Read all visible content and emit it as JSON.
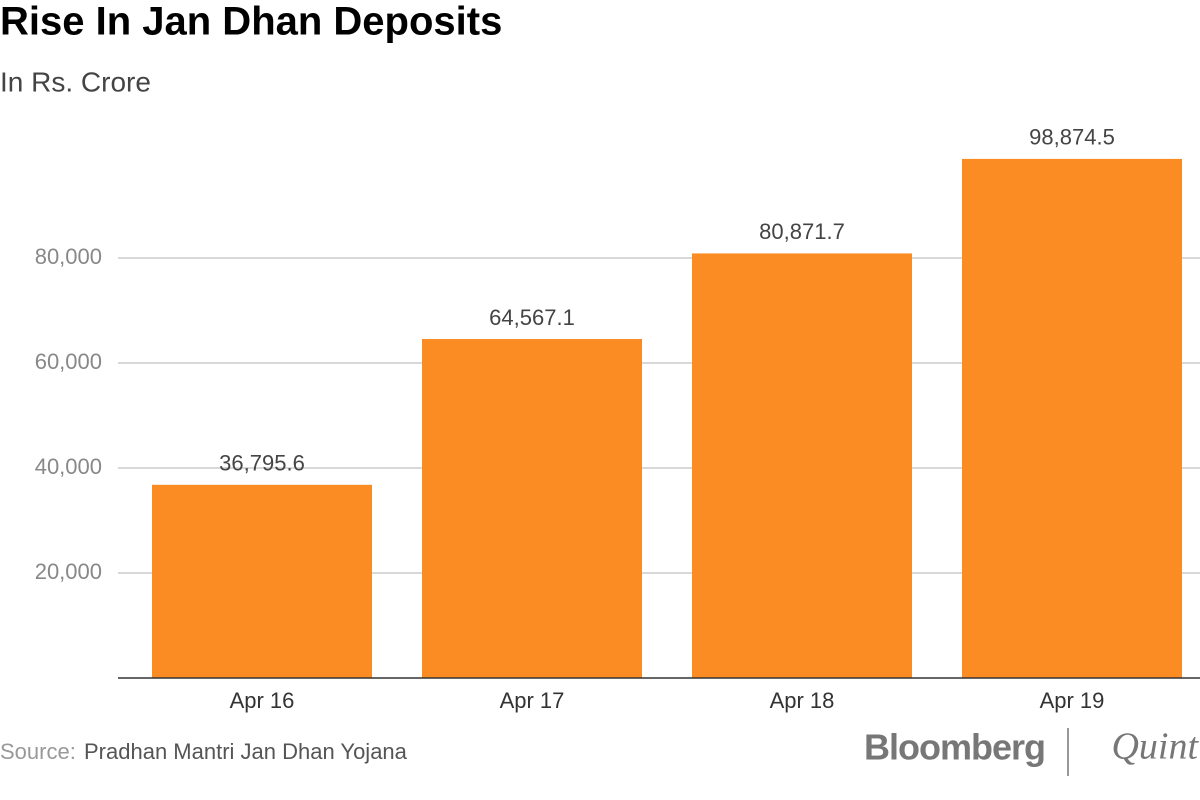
{
  "chart_data": {
    "type": "bar",
    "title": "Rise In Jan Dhan Deposits",
    "subtitle": "In Rs. Crore",
    "categories": [
      "Apr 16",
      "Apr 17",
      "Apr 18",
      "Apr 19"
    ],
    "values": [
      36795.6,
      64567.1,
      80871.7,
      98874.5
    ],
    "value_labels": [
      "36,795.6",
      "64,567.1",
      "80,871.7",
      "98,874.5"
    ],
    "color": "#fb8c24",
    "ylim": [
      0,
      100000
    ],
    "yticks": [
      {
        "value": 20000,
        "label": "20,000"
      },
      {
        "value": 40000,
        "label": "40,000"
      },
      {
        "value": 60000,
        "label": "60,000"
      },
      {
        "value": 80000,
        "label": "80,000"
      }
    ],
    "grid": true,
    "source_label": "Source:",
    "source": "Pradhan Mantri Jan Dhan Yojana",
    "brand": "Bloomberg",
    "brand_partner": "Quint"
  }
}
